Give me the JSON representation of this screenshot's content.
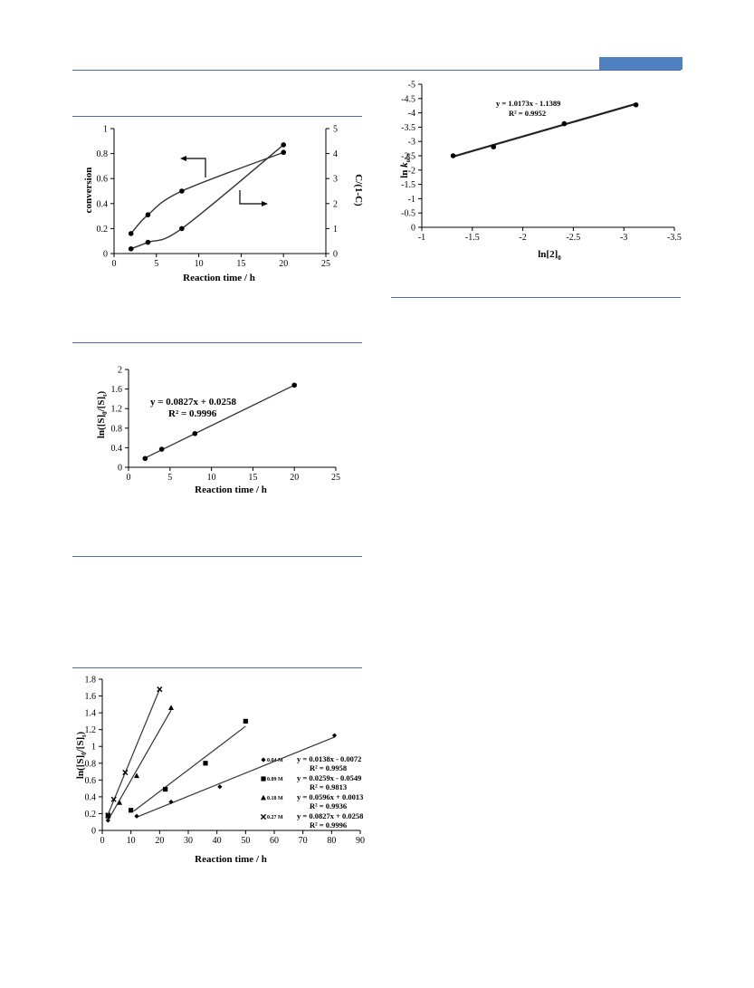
{
  "page": {
    "header_tab_color": "#4e81bd",
    "rule_color": "#4a6fa5"
  },
  "chart_data": [
    {
      "id": "conversion",
      "type": "line",
      "xlabel": "Reaction time / h",
      "ylabel": "conversion",
      "y2label": "C/(1-C)",
      "xlim": [
        0,
        25
      ],
      "ylim": [
        0,
        1
      ],
      "y2lim": [
        0,
        5
      ],
      "x_ticks": [
        "0",
        "5",
        "10",
        "15",
        "20",
        "25"
      ],
      "y_ticks": [
        "0",
        "0.2",
        "0.4",
        "0.6",
        "0.8",
        "1"
      ],
      "y2_ticks": [
        "0",
        "1",
        "2",
        "3",
        "4",
        "5"
      ],
      "series": [
        {
          "axis": "left",
          "x": [
            2,
            4,
            8,
            20
          ],
          "values": [
            0.16,
            0.31,
            0.5,
            0.81
          ]
        },
        {
          "axis": "right",
          "x": [
            2,
            4,
            8,
            20
          ],
          "values": [
            0.19,
            0.45,
            1.0,
            4.35
          ]
        }
      ],
      "annotations": [
        "arrow-left-to-conversion-axis",
        "arrow-right-to-ratio-axis"
      ]
    },
    {
      "id": "first-order",
      "type": "scatter",
      "xlabel": "Reaction time / h",
      "ylabel": "ln([S]0/[S]t)",
      "ylabel_main": "ln([S]",
      "ylabel_sub1": "0",
      "ylabel_mid": "/[S]",
      "ylabel_sub2": "t",
      "ylabel_end": ")",
      "xlim": [
        0,
        25
      ],
      "ylim": [
        0,
        2
      ],
      "x_ticks": [
        "0",
        "5",
        "10",
        "15",
        "20",
        "25"
      ],
      "y_ticks": [
        "0",
        "0.4",
        "0.8",
        "1.2",
        "1.6",
        "2"
      ],
      "x": [
        2,
        4,
        8,
        20
      ],
      "values": [
        0.18,
        0.37,
        0.69,
        1.68
      ],
      "fit": {
        "slope": 0.0827,
        "intercept": 0.0258
      },
      "equation": "y = 0.0827x + 0.0258",
      "r2": "R² = 0.9996"
    },
    {
      "id": "concentration-series",
      "type": "scatter",
      "xlabel": "Reaction time / h",
      "ylabel": "ln([S]0/[S]t)",
      "xlim": [
        0,
        90
      ],
      "ylim": [
        0,
        1.8
      ],
      "x_ticks": [
        "0",
        "10",
        "20",
        "30",
        "40",
        "50",
        "60",
        "70",
        "80",
        "90"
      ],
      "y_ticks": [
        "0",
        "0.2",
        "0.4",
        "0.6",
        "0.8",
        "1",
        "1.2",
        "1.4",
        "1.6",
        "1.8"
      ],
      "series": [
        {
          "name": "0.04 M",
          "marker": "diamond",
          "x": [
            2,
            12,
            24,
            41,
            81
          ],
          "values": [
            0.12,
            0.17,
            0.34,
            0.52,
            1.13
          ],
          "fit_x": [
            12,
            81
          ],
          "fit": {
            "slope": 0.0138,
            "intercept": -0.0072
          },
          "equation": "y = 0.0138x - 0.0072",
          "r2": "R² = 0.9958"
        },
        {
          "name": "0.09 M",
          "marker": "square",
          "x": [
            2,
            10,
            22,
            36,
            50
          ],
          "values": [
            0.18,
            0.24,
            0.49,
            0.8,
            1.3
          ],
          "fit_x": [
            11,
            50
          ],
          "fit": {
            "slope": 0.0259,
            "intercept": -0.0549
          },
          "equation": "y = 0.0259x - 0.0549",
          "r2": "R² = 0.9813"
        },
        {
          "name": "0.18 M",
          "marker": "triangle",
          "x": [
            2,
            6,
            12,
            24
          ],
          "values": [
            0.17,
            0.33,
            0.65,
            1.46
          ],
          "fit_x": [
            2,
            24
          ],
          "fit": {
            "slope": 0.0596,
            "intercept": 0.0013
          },
          "equation": "y = 0.0596x + 0.0013",
          "r2": "R² = 0.9936"
        },
        {
          "name": "0.27 M",
          "marker": "x",
          "x": [
            2,
            4,
            8,
            20
          ],
          "values": [
            0.18,
            0.37,
            0.69,
            1.68
          ],
          "fit_x": [
            1.5,
            20
          ],
          "fit": {
            "slope": 0.0827,
            "intercept": 0.0258
          },
          "equation": "y = 0.0827x + 0.0258",
          "r2": "R² = 0.9996"
        }
      ]
    },
    {
      "id": "order-plot",
      "type": "scatter",
      "xlabel": "ln[2]0",
      "xlabel_main": "ln[2]",
      "xlabel_sub": "0",
      "ylabel": "ln kobs",
      "ylabel_main": "ln ",
      "ylabel_k": "k",
      "ylabel_sub": "obs",
      "xlim": [
        -1,
        -3.5
      ],
      "ylim": [
        0,
        -5
      ],
      "x_ticks": [
        "-1",
        "-1.5",
        "-2",
        "-2.5",
        "-3",
        "-3.5"
      ],
      "y_ticks": [
        "0",
        "-0.5",
        "-1",
        "-1.5",
        "-2",
        "-2.5",
        "-3",
        "-3.5",
        "-4",
        "-4.5",
        "-5"
      ],
      "x": [
        -1.31,
        -1.71,
        -2.41,
        -3.12
      ],
      "values": [
        -2.5,
        -2.81,
        -3.62,
        -4.28
      ],
      "fit": {
        "slope": 1.0173,
        "intercept": -1.1389
      },
      "equation": "y = 1.0173x - 1.1389",
      "r2": "R² = 0.9952"
    }
  ]
}
